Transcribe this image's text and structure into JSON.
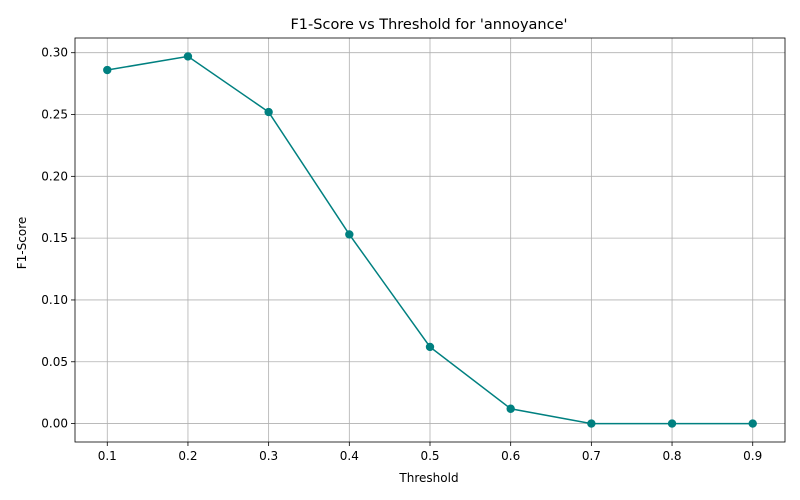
{
  "chart_data": {
    "type": "line",
    "title": "F1-Score vs Threshold for 'annoyance'",
    "xlabel": "Threshold",
    "ylabel": "F1-Score",
    "x": [
      0.1,
      0.2,
      0.3,
      0.4,
      0.5,
      0.6,
      0.7,
      0.8,
      0.9
    ],
    "series": [
      {
        "values": [
          0.286,
          0.297,
          0.252,
          0.153,
          0.062,
          0.012,
          0.0,
          0.0,
          0.0
        ],
        "color": "#008080"
      }
    ],
    "xlim": [
      0.06,
      0.94
    ],
    "ylim": [
      -0.0149,
      0.3119
    ],
    "xticks": [
      0.1,
      0.2,
      0.3,
      0.4,
      0.5,
      0.6,
      0.7,
      0.8,
      0.9
    ],
    "xtick_labels": [
      "0.1",
      "0.2",
      "0.3",
      "0.4",
      "0.5",
      "0.6",
      "0.7",
      "0.8",
      "0.9"
    ],
    "yticks": [
      0.0,
      0.05,
      0.1,
      0.15,
      0.2,
      0.25,
      0.3
    ],
    "ytick_labels": [
      "0.00",
      "0.05",
      "0.10",
      "0.15",
      "0.20",
      "0.25",
      "0.30"
    ],
    "grid": true,
    "markers": "circle"
  }
}
